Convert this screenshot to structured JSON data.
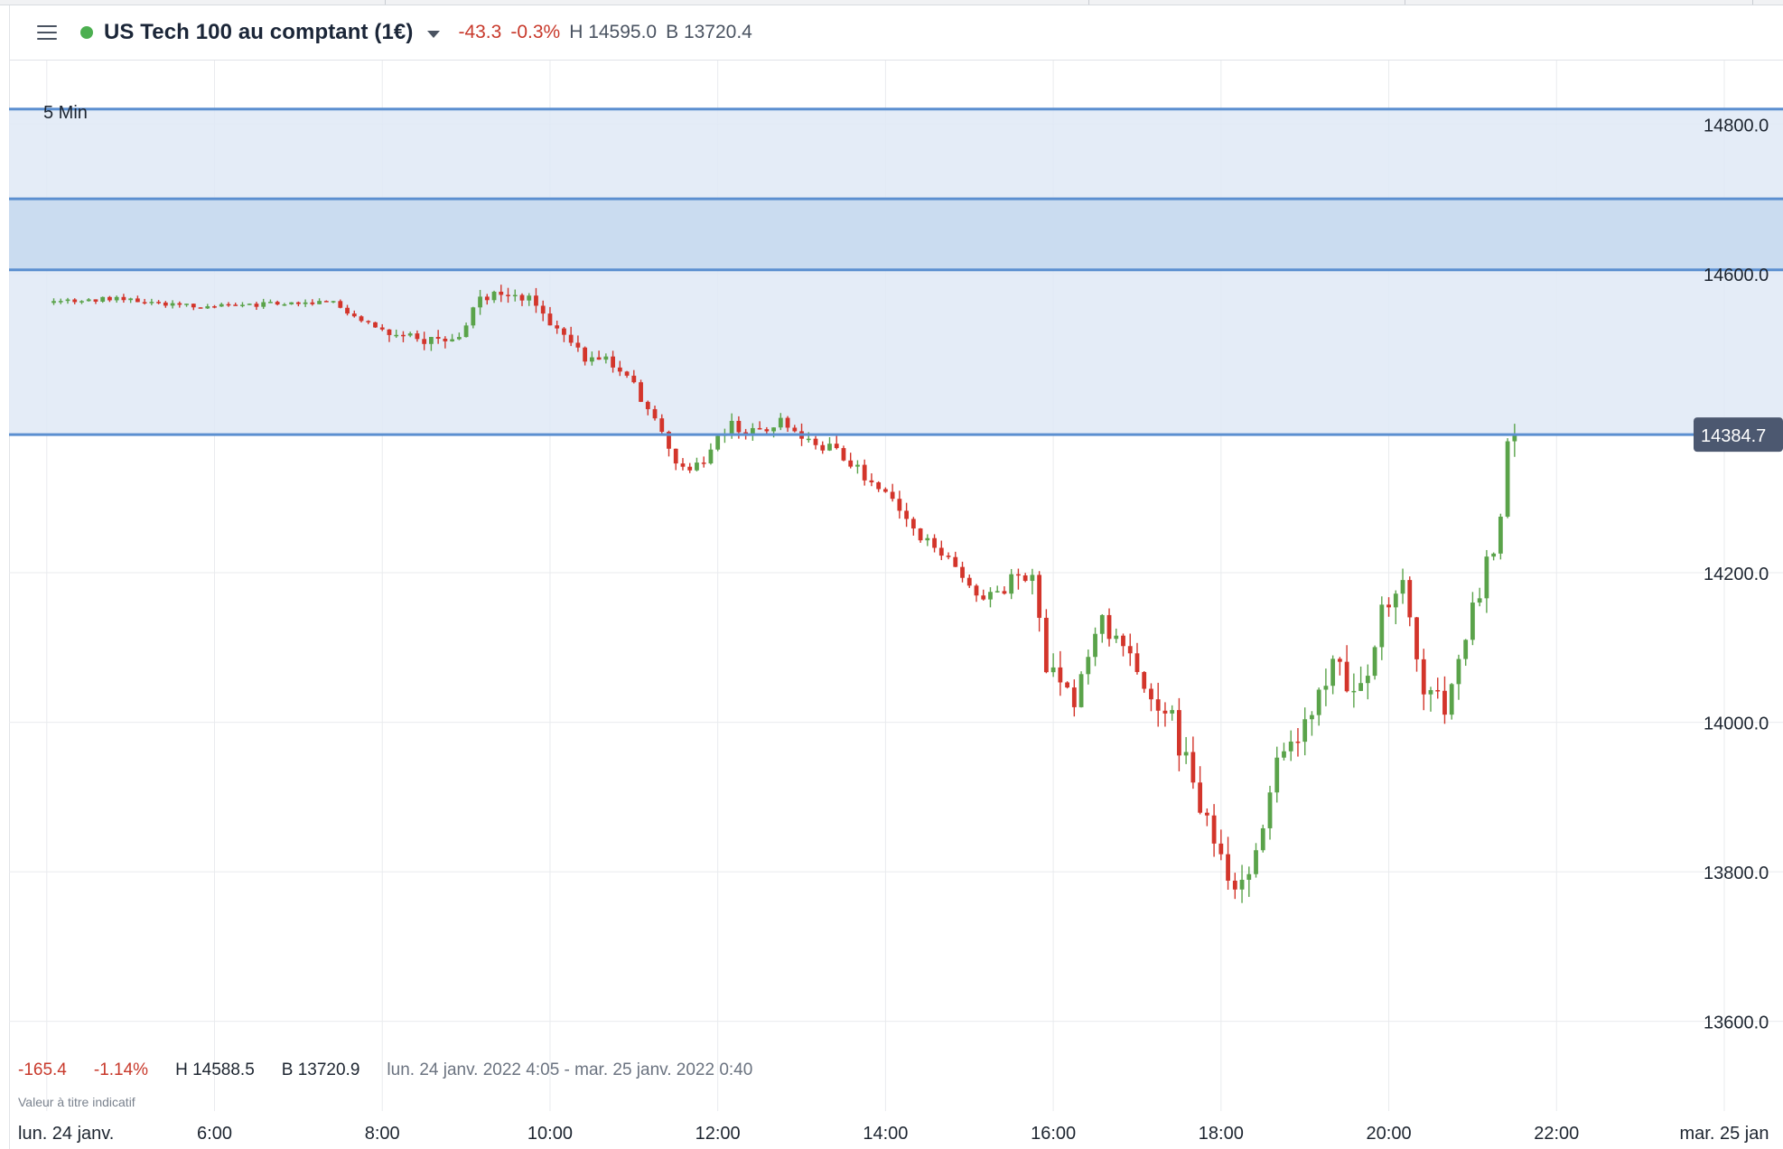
{
  "header": {
    "instrument": "US Tech 100 au comptant (1€)",
    "change": "-43.3",
    "change_pct": "-0.3%",
    "high": "H 14595.0",
    "low": "B 13720.4",
    "status_color": "#4caf50"
  },
  "interval": "5 Min",
  "stats": {
    "change": "-165.4",
    "change_pct": "-1.14%",
    "high": "H 14588.5",
    "low": "B 13720.9",
    "range": "lun. 24 janv. 2022 4:05 - mar. 25 janv. 2022 0:40"
  },
  "note": "Valeur à titre indicatif",
  "icons": {
    "menu": "hamburger-icon",
    "dropdown": "caret-down-icon"
  },
  "colors": {
    "up": "#5aa34a",
    "down": "#d3352b",
    "level_line": "#5b8fd0",
    "zone": "#dfe9f6",
    "zone_dark": "#c6d9ee",
    "price_tag": "#4c5870"
  },
  "chart_data": {
    "type": "candlestick",
    "ylim": [
      13480,
      14885
    ],
    "ytick_values": [
      13600,
      13800,
      14000,
      14200,
      14600,
      14800
    ],
    "ytick_labels": [
      "13600.0",
      "13800.0",
      "14000.0",
      "14200.0",
      "14600.0",
      "14800.0"
    ],
    "xtick_values": [
      4,
      6,
      8,
      10,
      12,
      14,
      16,
      18,
      20,
      22,
      24
    ],
    "xtick_labels": [
      "lun. 24 janv.",
      "6:00",
      "8:00",
      "10:00",
      "12:00",
      "14:00",
      "16:00",
      "18:00",
      "20:00",
      "22:00",
      "mar. 25 jan"
    ],
    "x_unit": "hour of day, 24 Jan 2022",
    "current_price": 14384.7,
    "current_price_label": "14384.7",
    "levels": [
      14820,
      14700,
      14605,
      14384.7
    ],
    "zones": [
      {
        "from": 14384.7,
        "to": 14820,
        "shade": "light"
      },
      {
        "from": 14605,
        "to": 14700,
        "shade": "dark"
      }
    ],
    "anchors": [
      [
        4.0,
        14560
      ],
      [
        4.5,
        14565
      ],
      [
        5.0,
        14568
      ],
      [
        5.5,
        14560
      ],
      [
        6.0,
        14555
      ],
      [
        6.5,
        14558
      ],
      [
        7.0,
        14562
      ],
      [
        7.5,
        14560
      ],
      [
        8.0,
        14530
      ],
      [
        8.5,
        14508
      ],
      [
        9.0,
        14520
      ],
      [
        9.3,
        14570
      ],
      [
        9.6,
        14578
      ],
      [
        9.9,
        14560
      ],
      [
        10.2,
        14520
      ],
      [
        10.5,
        14490
      ],
      [
        10.9,
        14480
      ],
      [
        11.3,
        14410
      ],
      [
        11.6,
        14345
      ],
      [
        11.9,
        14345
      ],
      [
        12.2,
        14400
      ],
      [
        12.5,
        14385
      ],
      [
        12.8,
        14405
      ],
      [
        13.1,
        14385
      ],
      [
        13.5,
        14360
      ],
      [
        14.0,
        14315
      ],
      [
        14.5,
        14245
      ],
      [
        14.9,
        14215
      ],
      [
        15.2,
        14165
      ],
      [
        15.5,
        14180
      ],
      [
        15.8,
        14205
      ],
      [
        16.0,
        14080
      ],
      [
        16.3,
        14020
      ],
      [
        16.6,
        14130
      ],
      [
        16.9,
        14125
      ],
      [
        17.2,
        14020
      ],
      [
        17.5,
        14000
      ],
      [
        17.8,
        13900
      ],
      [
        18.0,
        13850
      ],
      [
        18.2,
        13775
      ],
      [
        18.5,
        13820
      ],
      [
        18.8,
        13960
      ],
      [
        19.2,
        14010
      ],
      [
        19.4,
        14090
      ],
      [
        19.7,
        14020
      ],
      [
        20.0,
        14140
      ],
      [
        20.2,
        14200
      ],
      [
        20.5,
        14050
      ],
      [
        20.8,
        14020
      ],
      [
        21.0,
        14110
      ],
      [
        21.2,
        14190
      ],
      [
        21.4,
        14260
      ],
      [
        21.5,
        14384.7
      ]
    ]
  }
}
